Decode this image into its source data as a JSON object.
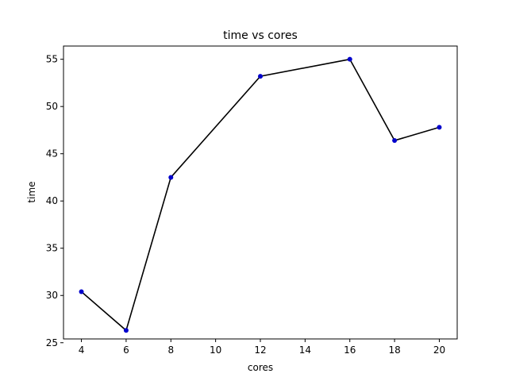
{
  "chart_data": {
    "type": "line",
    "title": "time vs cores",
    "xlabel": "cores",
    "ylabel": "time",
    "x": [
      4,
      6,
      8,
      12,
      16,
      18,
      20
    ],
    "series": [
      {
        "values": [
          30.4,
          26.3,
          42.5,
          53.2,
          55.0,
          46.4,
          47.8
        ]
      }
    ],
    "xticks": [
      4,
      6,
      8,
      10,
      12,
      14,
      16,
      18,
      20
    ],
    "yticks": [
      25,
      30,
      35,
      40,
      45,
      50,
      55
    ],
    "xlim": [
      3.2,
      20.8
    ],
    "ylim": [
      25.4,
      56.4
    ],
    "grid": false,
    "colors": {
      "line": "#000000",
      "marker": "#0000cc"
    }
  }
}
